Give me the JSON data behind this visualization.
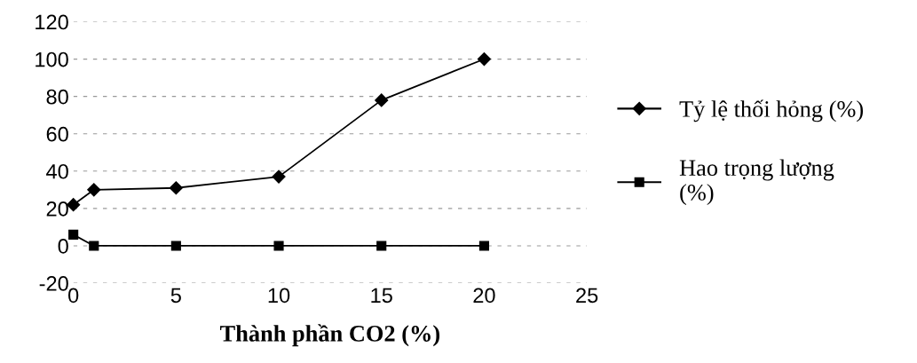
{
  "chart_data": {
    "type": "line",
    "xlabel": "Thành phần CO2 (%)",
    "x": [
      0,
      1,
      5,
      10,
      15,
      20
    ],
    "series": [
      {
        "name": "Tỷ lệ thối hỏng (%)",
        "color": "#000000",
        "marker": "diamond",
        "values": [
          22,
          30,
          31,
          37,
          78,
          100
        ]
      },
      {
        "name": "Hao trọng lượng\n(%)",
        "color": "#000000",
        "marker": "square",
        "values": [
          6,
          0,
          0,
          0,
          0,
          0
        ]
      }
    ],
    "xlim": [
      0,
      25
    ],
    "xticks": [
      0,
      5,
      10,
      15,
      20,
      25
    ],
    "ylim": [
      -20,
      120
    ],
    "yticks": [
      -20,
      0,
      20,
      40,
      60,
      80,
      100,
      120
    ],
    "grid": "y",
    "legend": "right",
    "line_style": "solid"
  }
}
